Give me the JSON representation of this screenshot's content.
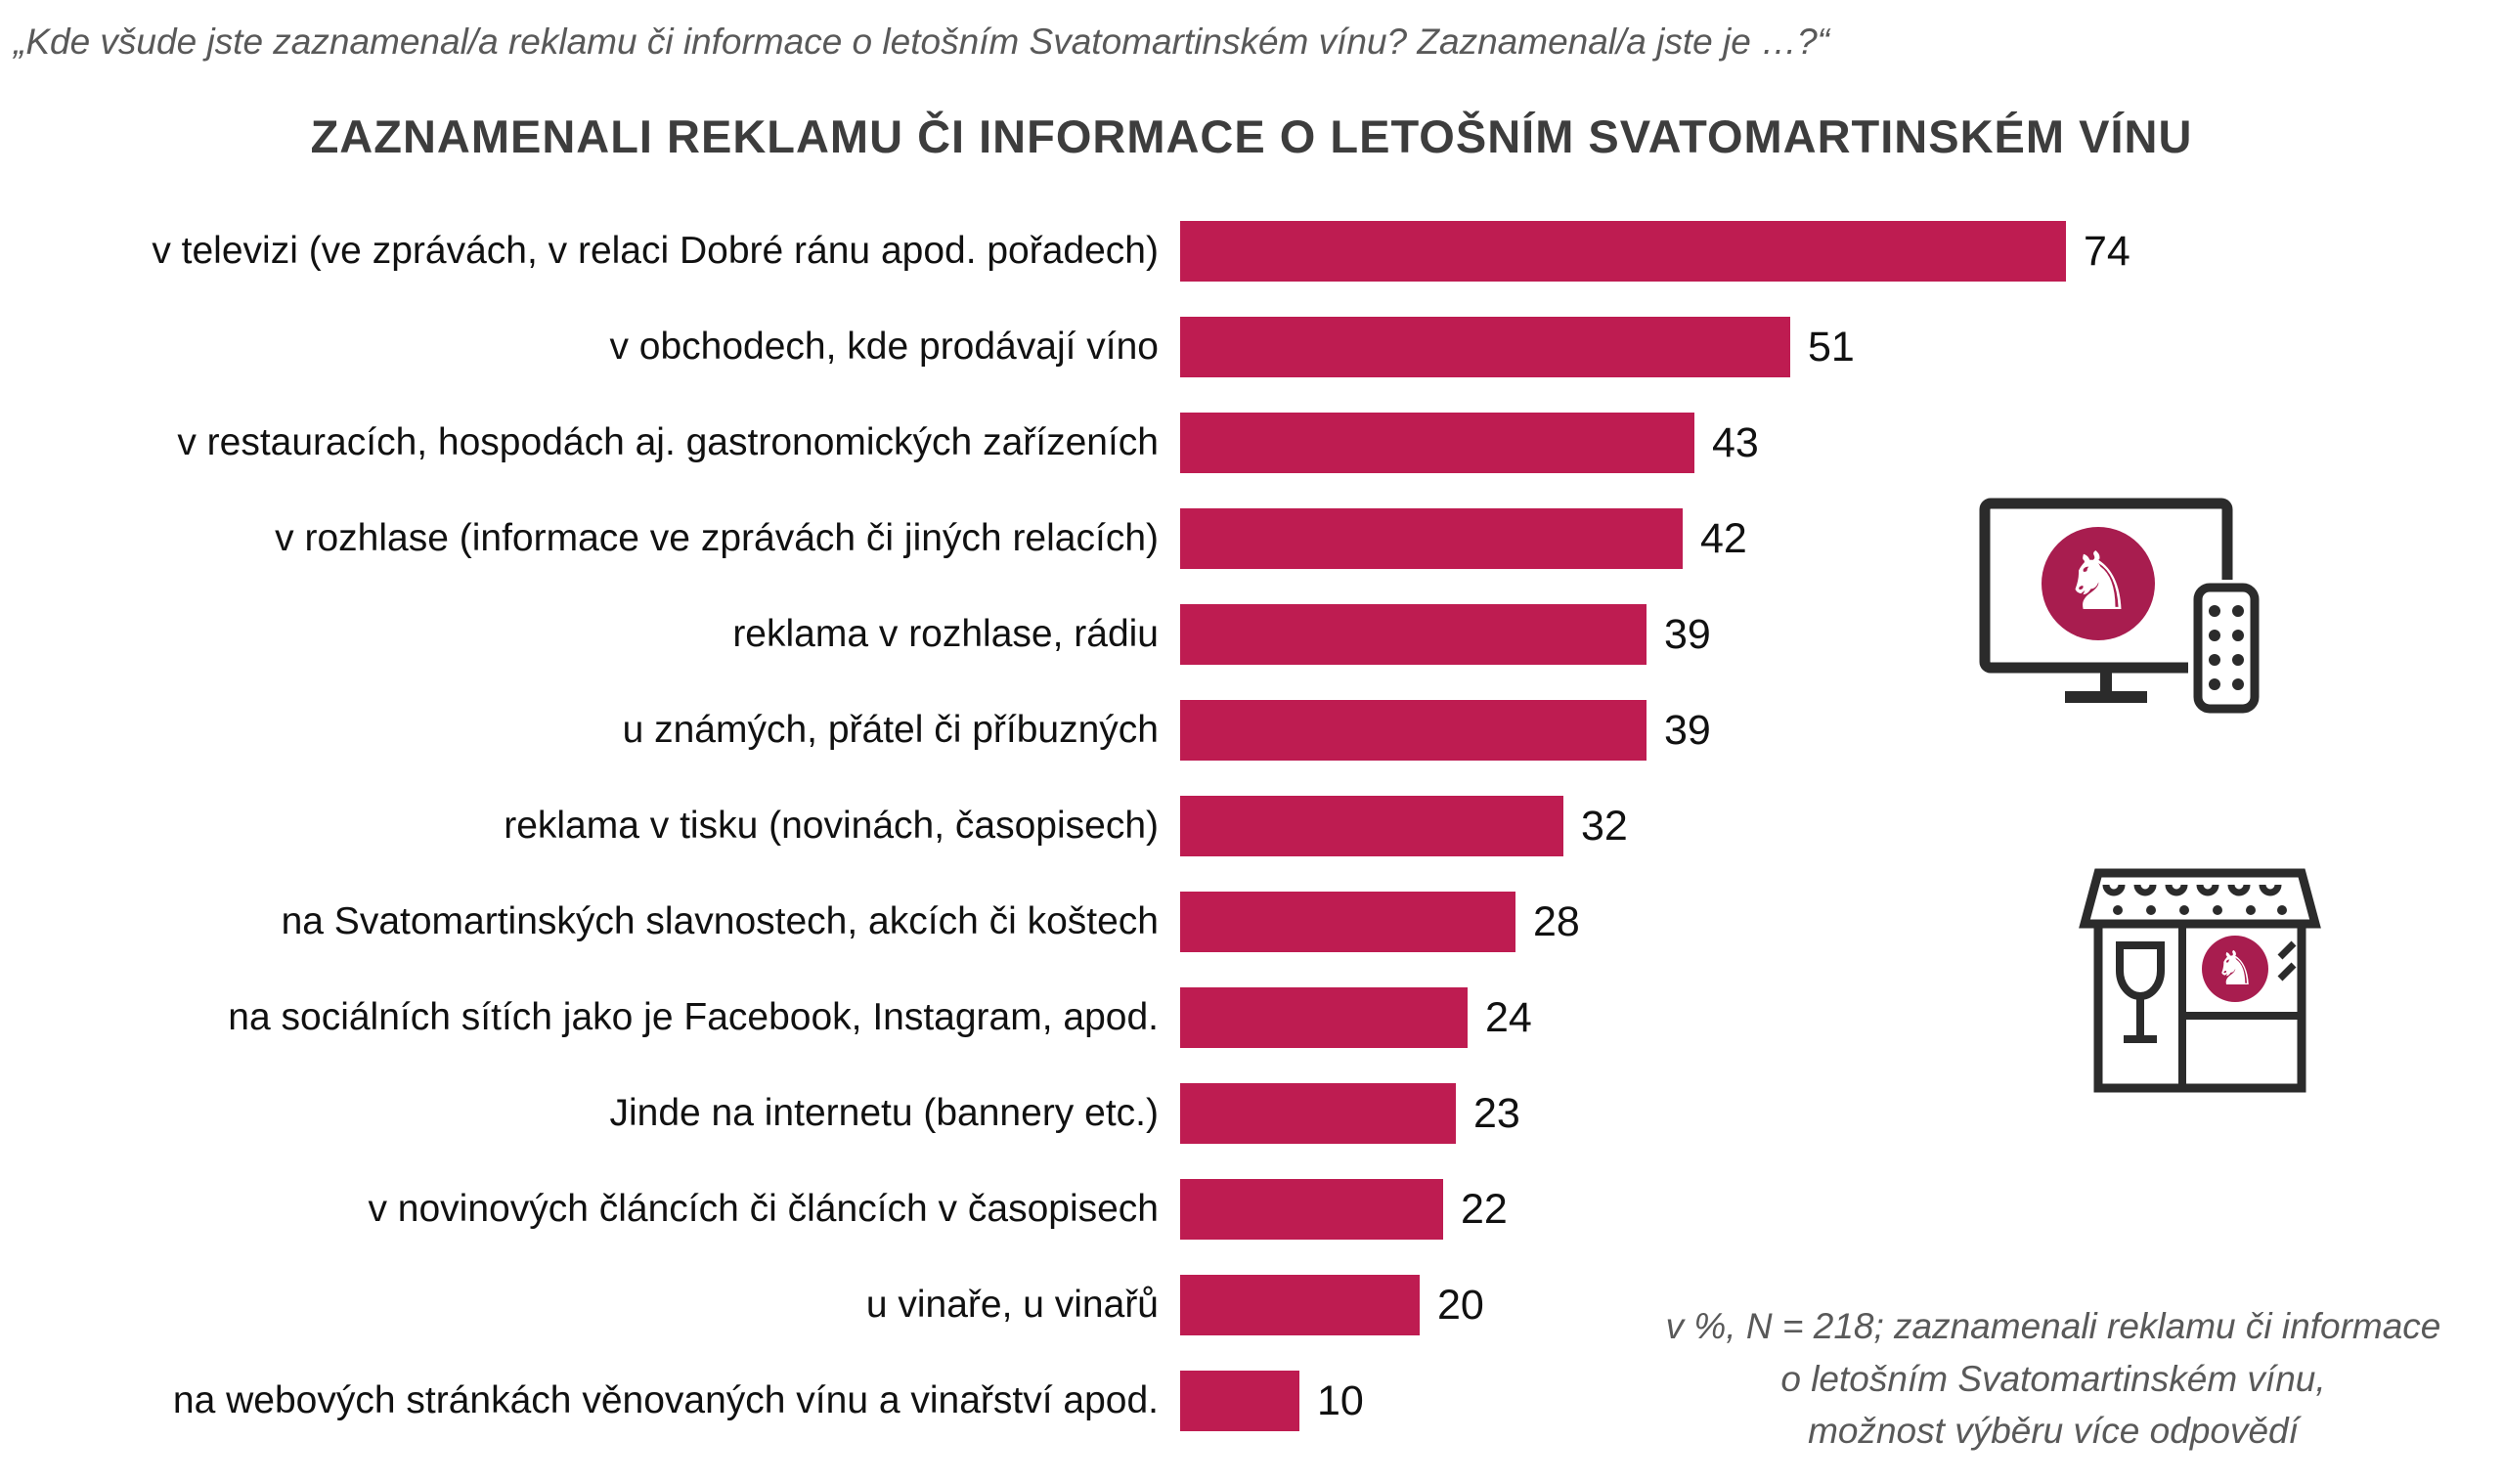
{
  "quote": "„Kde všude jste zaznamenal/a reklamu či informace o letošním Svatomartinském vínu? Zaznamenal/a jste je …?“",
  "chart_data": {
    "type": "bar",
    "orientation": "horizontal",
    "title": "ZAZNAMENALI REKLAMU ČI INFORMACE O LETOŠNÍM SVATOMARTINSKÉM VÍNU",
    "categories": [
      "v televizi (ve zprávách, v relaci Dobré ránu apod. pořadech)",
      "v obchodech, kde prodávají víno",
      "v restauracích, hospodách aj. gastronomických zařízeních",
      "v rozhlase (informace ve zprávách či jiných relacích)",
      "reklama v rozhlase, rádiu",
      "u známých, přátel či příbuzných",
      "reklama v tisku (novinách, časopisech)",
      "na Svatomartinských slavnostech, akcích či koštech",
      "na sociálních sítích jako je Facebook, Instagram, apod.",
      "Jinde na internetu (bannery etc.)",
      "v novinových článcích či článcích v časopisech",
      "u vinaře, u vinařů",
      "na webových stránkách věnovaných vínu a vinařství apod."
    ],
    "values": [
      74,
      51,
      43,
      42,
      39,
      39,
      32,
      28,
      24,
      23,
      22,
      20,
      10
    ],
    "value_labels": true,
    "xlabel": "",
    "ylabel": "",
    "xlim": [
      0,
      80
    ],
    "grid": false,
    "legend": "none",
    "bar_color": "#be1c51",
    "unit": "%"
  },
  "footnote": {
    "lines": [
      "v %, N = 218; zaznamenali reklamu či informace",
      "o letošním Svatomartinském vínu,",
      "možnost výběru více odpovědí"
    ]
  },
  "icons": {
    "tv": "tv-with-wine-logo-and-remote",
    "shop": "wine-shop-with-logo"
  }
}
